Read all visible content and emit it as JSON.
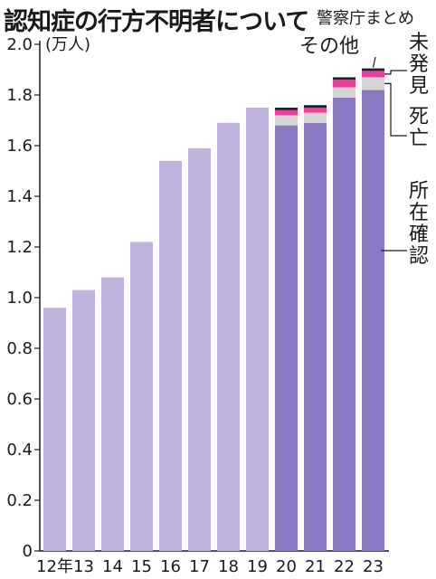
{
  "title": "認知症の行方不明者について",
  "source": "警察庁まとめ",
  "chart_data": {
    "type": "bar",
    "stacked": true,
    "title": "認知症の行方不明者について",
    "unit_label": "(万人)",
    "categories": [
      "12年",
      "13",
      "14",
      "15",
      "16",
      "17",
      "18",
      "19",
      "20",
      "21",
      "22",
      "23"
    ],
    "series": [
      {
        "name": "所在確認",
        "values": [
          0.96,
          1.03,
          1.08,
          1.22,
          1.54,
          1.59,
          1.69,
          1.75,
          1.68,
          1.69,
          1.79,
          1.82
        ],
        "color": "#8a78c2"
      },
      {
        "name": "死亡",
        "values": [
          0,
          0,
          0,
          0,
          0,
          0,
          0,
          0,
          0.04,
          0.04,
          0.04,
          0.05
        ],
        "color": "#d6d6d6"
      },
      {
        "name": "未発見",
        "values": [
          0,
          0,
          0,
          0,
          0,
          0,
          0,
          0,
          0.02,
          0.02,
          0.03,
          0.025
        ],
        "color": "#e8419a"
      },
      {
        "name": "その他",
        "values": [
          0,
          0,
          0,
          0,
          0,
          0,
          0,
          0,
          0.01,
          0.01,
          0.01,
          0.01
        ],
        "color": "#2b1f2f"
      }
    ],
    "early_color": "#bfb3de",
    "ylim": [
      0,
      2.0
    ],
    "yticks": [
      "0",
      "0.2",
      "0.4",
      "0.6",
      "0.8",
      "1.0",
      "1.2",
      "1.4",
      "1.6",
      "1.8",
      "2.0"
    ],
    "grid": false,
    "legend_placement": "right"
  }
}
